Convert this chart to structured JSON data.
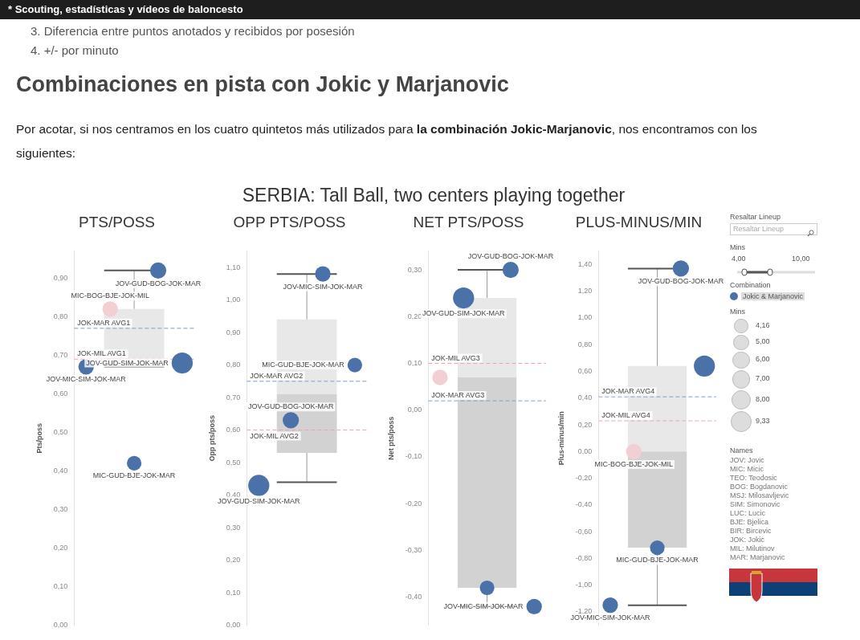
{
  "chart_data": [
    {
      "type": "other",
      "title": "Combinaciones en pista con Jokic y Marjanovic",
      "subtitle": "SERBIA: Tall Ball, two centers playing together",
      "annotations": [
        "* Scouting, estadísticas y vídeos de baloncesto",
        "3. Diferencia entre puntos anotados y recibidos por posesión",
        "4. +/- por minuto",
        "Por acotar, si nos centramos en los cuatro quintetos más utilizados para ",
        "la combinación Jokic-Marjanovic",
        ", nos encontramos con los siguientes:"
      ]
    },
    {
      "type": "box",
      "title": "PTS/POSS",
      "ylabel": "Pts/poss",
      "categories": [
        null
      ],
      "tick_labels": "y",
      "ylim": [
        0,
        0.97
      ],
      "yticks": [
        {
          "value": 0,
          "label": "0,00"
        },
        {
          "value": 0.1,
          "label": "0,10"
        },
        {
          "value": 0.2,
          "label": "0,20"
        },
        {
          "value": 0.3,
          "label": "0,30"
        },
        {
          "value": 0.4,
          "label": "0,40"
        },
        {
          "value": 0.5,
          "label": "0,50"
        },
        {
          "value": 0.6,
          "label": "0,60"
        },
        {
          "value": 0.7,
          "label": "0,70"
        },
        {
          "value": 0.8,
          "label": "0,80"
        },
        {
          "value": 0.9,
          "label": "0,90"
        }
      ],
      "boxes": [
        {
          "low": 0.67,
          "q1": 0.67,
          "median": 0.68,
          "q3": 0.82,
          "high": 0.92
        }
      ],
      "series": [
        {
          "type": "bubble",
          "color": "#4a72a8",
          "values": [
            0.67
          ],
          "sizes": [
            0.54
          ],
          "value_labels": [
            "JOV-MIC-SIM-JOK-MAR"
          ]
        },
        {
          "type": "bubble",
          "color": "#f2cfd2",
          "values": [
            0.82
          ],
          "sizes": [
            0.54
          ],
          "value_labels": [
            "MIC-BOG-BJE-JOK-MIL"
          ]
        },
        {
          "type": "bubble",
          "color": "#4a72a8",
          "values": [
            0.42
          ],
          "sizes": [
            0.48
          ],
          "value_labels": [
            "MIC-GUD-BJE-JOK-MAR"
          ]
        },
        {
          "type": "bubble",
          "color": "#4a72a8",
          "values": [
            0.92
          ],
          "sizes": [
            0.59
          ],
          "value_labels": [
            "JOV-GUD-BOG-JOK-MAR"
          ]
        },
        {
          "type": "bubble",
          "color": "#4a72a8",
          "values": [
            0.68
          ],
          "sizes": [
            1
          ],
          "value_labels": [
            "JOV-GUD-SIM-JOK-MAR"
          ]
        }
      ],
      "ref_lines": [
        {
          "axis": "y",
          "value": 0.77,
          "label": "JOK-MAR AVG1",
          "color": "#7f9fcc",
          "line_style": "dashed"
        },
        {
          "axis": "y",
          "value": 0.69,
          "label": "JOK-MIL AVG1",
          "color": "#f0a3ab",
          "line_style": "dashed"
        }
      ]
    },
    {
      "type": "box",
      "title": "OPP PTS/POSS",
      "ylabel": "Opp pts/poss",
      "categories": [
        null
      ],
      "tick_labels": "y",
      "ylim": [
        0,
        1.15
      ],
      "yticks": [
        {
          "value": 0,
          "label": "0,00"
        },
        {
          "value": 0.1,
          "label": "0,10"
        },
        {
          "value": 0.2,
          "label": "0,20"
        },
        {
          "value": 0.3,
          "label": "0,30"
        },
        {
          "value": 0.4,
          "label": "0,40"
        },
        {
          "value": 0.5,
          "label": "0,50"
        },
        {
          "value": 0.6,
          "label": "0,60"
        },
        {
          "value": 0.7,
          "label": "0,70"
        },
        {
          "value": 0.8,
          "label": "0,80"
        },
        {
          "value": 0.9,
          "label": "0,90"
        },
        {
          "value": 1,
          "label": "1,00"
        },
        {
          "value": 1.1,
          "label": "1,10"
        }
      ],
      "boxes": [
        {
          "low": 0.44,
          "q1": 0.53,
          "median": 0.71,
          "q3": 0.94,
          "high": 1.08
        }
      ],
      "series": [
        {
          "type": "bubble",
          "color": "#4a72a8",
          "values": [
            0.43
          ],
          "sizes": [
            1
          ],
          "value_labels": [
            "JOV-GUD-SIM-JOK-MAR"
          ]
        },
        {
          "type": "bubble",
          "color": "#4a72a8",
          "values": [
            0.63
          ],
          "sizes": [
            0.59
          ],
          "value_labels": [
            "JOV-GUD-BOG-JOK-MAR"
          ]
        },
        {
          "type": "bubble",
          "color": "#4a72a8",
          "values": [
            1.08
          ],
          "sizes": [
            0.54
          ],
          "value_labels": [
            "JOV-MIC-SIM-JOK-MAR"
          ]
        },
        {
          "type": "bubble",
          "color": "#4a72a8",
          "values": [
            0.8
          ],
          "sizes": [
            0.48
          ],
          "value_labels": [
            "MIC-GUD-BJE-JOK-MAR"
          ]
        }
      ],
      "ref_lines": [
        {
          "axis": "y",
          "value": 0.75,
          "label": "JOK-MAR AVG2",
          "color": "#7f9fcc",
          "line_style": "dashed"
        },
        {
          "axis": "y",
          "value": 0.6,
          "label": "JOK-MIL AVG2",
          "color": "#f0a3ab",
          "line_style": "dashed"
        }
      ]
    },
    {
      "type": "box",
      "title": "NET PTS/POSS",
      "ylabel": "Net pts/poss",
      "categories": [
        null
      ],
      "tick_labels": "y",
      "ylim": [
        -0.46,
        0.34
      ],
      "yticks": [
        {
          "value": -0.4,
          "label": "-0,40"
        },
        {
          "value": -0.3,
          "label": "-0,30"
        },
        {
          "value": -0.2,
          "label": "-0,20"
        },
        {
          "value": -0.1,
          "label": "-0,10"
        },
        {
          "value": 0,
          "label": "0,00"
        },
        {
          "value": 0.1,
          "label": "0,10"
        },
        {
          "value": 0.2,
          "label": "0,20"
        },
        {
          "value": 0.3,
          "label": "0,30"
        }
      ],
      "boxes": [
        {
          "low": -0.42,
          "q1": -0.38,
          "median": 0.07,
          "q3": 0.24,
          "high": 0.3
        }
      ],
      "series": [
        {
          "type": "bubble",
          "color": "#f2cfd2",
          "values": [
            0.07
          ],
          "sizes": [
            0.54
          ]
        },
        {
          "type": "bubble",
          "color": "#4a72a8",
          "values": [
            0.24
          ],
          "sizes": [
            1
          ],
          "value_labels": [
            "JOV-GUD-SIM-JOK-MAR"
          ]
        },
        {
          "type": "bubble",
          "color": "#4a72a8",
          "values": [
            -0.38
          ],
          "sizes": [
            0.48
          ]
        },
        {
          "type": "bubble",
          "color": "#4a72a8",
          "values": [
            0.3
          ],
          "sizes": [
            0.59
          ],
          "value_labels": [
            "JOV-GUD-BOG-JOK-MAR"
          ]
        },
        {
          "type": "bubble",
          "color": "#4a72a8",
          "values": [
            -0.42
          ],
          "sizes": [
            0.54
          ],
          "value_labels": [
            "JOV-MIC-SIM-JOK-MAR"
          ]
        }
      ],
      "ref_lines": [
        {
          "axis": "y",
          "value": 0.1,
          "label": "JOK-MIL AVG3",
          "color": "#f0a3ab",
          "line_style": "dashed"
        },
        {
          "axis": "y",
          "value": 0.02,
          "label": "JOK-MAR AVG3",
          "color": "#7f9fcc",
          "line_style": "dashed"
        }
      ]
    },
    {
      "type": "box",
      "title": "PLUS-MINUS/MIN",
      "ylabel": "Plus-minus/min",
      "categories": [
        null
      ],
      "tick_labels": "y",
      "ylim": [
        -1.3,
        1.5
      ],
      "yticks": [
        {
          "value": -1.2,
          "label": "-1,20"
        },
        {
          "value": -1,
          "label": "-1,00"
        },
        {
          "value": -0.8,
          "label": "-0,80"
        },
        {
          "value": -0.6,
          "label": "-0,60"
        },
        {
          "value": -0.4,
          "label": "-0,40"
        },
        {
          "value": -0.2,
          "label": "-0,20"
        },
        {
          "value": 0,
          "label": "0,00"
        },
        {
          "value": 0.2,
          "label": "0,20"
        },
        {
          "value": 0.4,
          "label": "0,40"
        },
        {
          "value": 0.6,
          "label": "0,60"
        },
        {
          "value": 0.8,
          "label": "0,80"
        },
        {
          "value": 1,
          "label": "1,00"
        },
        {
          "value": 1.2,
          "label": "1,20"
        },
        {
          "value": 1.4,
          "label": "1,40"
        }
      ],
      "boxes": [
        {
          "low": -1.15,
          "q1": -0.72,
          "median": 0,
          "q3": 0.64,
          "high": 1.37
        }
      ],
      "series": [
        {
          "name": "Jokic & Marjanovic",
          "type": "bubble",
          "color": "#4a72a8",
          "values": [
            -1.15
          ],
          "sizes": [
            5
          ],
          "value_labels": [
            "JOV-MIC-SIM-JOK-MAR"
          ]
        },
        {
          "type": "bubble",
          "color": "#f2cfd2",
          "values": [
            0
          ],
          "sizes": [
            5
          ],
          "value_labels": [
            "MIC-BOG-BJE-JOK-MIL"
          ]
        },
        {
          "type": "bubble",
          "color": "#4a72a8",
          "values": [
            -0.72
          ],
          "sizes": [
            4.5
          ],
          "value_labels": [
            "MIC-GUD-BJE-JOK-MAR"
          ]
        },
        {
          "type": "bubble",
          "color": "#4a72a8",
          "values": [
            1.37
          ],
          "sizes": [
            5.5
          ],
          "value_labels": [
            "JOV-GUD-BOG-JOK-MAR"
          ]
        },
        {
          "type": "bubble",
          "color": "#4a72a8",
          "values": [
            0.64
          ],
          "sizes": [
            9.33
          ]
        }
      ],
      "ref_lines": [
        {
          "axis": "y",
          "value": 0.41,
          "label": "JOK-MAR AVG4",
          "color": "#7f9fcc",
          "line_style": "dashed"
        },
        {
          "axis": "y",
          "value": 0.23,
          "label": "JOK-MIL AVG4",
          "color": "#f0a3ab",
          "line_style": "dashed"
        }
      ],
      "legend": "right",
      "legend_title": "Combination",
      "size_legend": [
        {
          "value": 4.16,
          "label": "4,16"
        },
        {
          "value": 5,
          "label": "5,00"
        },
        {
          "value": 6,
          "label": "6,00"
        },
        {
          "value": 7,
          "label": "7,00"
        },
        {
          "value": 8,
          "label": "8,00"
        },
        {
          "value": 9.33,
          "label": "9,33"
        }
      ]
    },
    {
      "type": "other",
      "annotations": [
        "Resaltar Lineup",
        "Resaltar Lineup",
        "Mins",
        "4,00",
        "10,00",
        "Mins",
        "Names",
        "JOV: Jovic",
        "MIC: Micic",
        "TEO: Teodosic",
        "BOG: Bogdanovic",
        "MSJ: Milosavljevic",
        "SIM: Simonovic",
        "LUC: Lucic",
        "BJE: Bjelica",
        "BIR: Bircevic",
        "JOK: Jokic",
        "MIL: Milutinov",
        "MAR: Marjanovic"
      ]
    }
  ]
}
